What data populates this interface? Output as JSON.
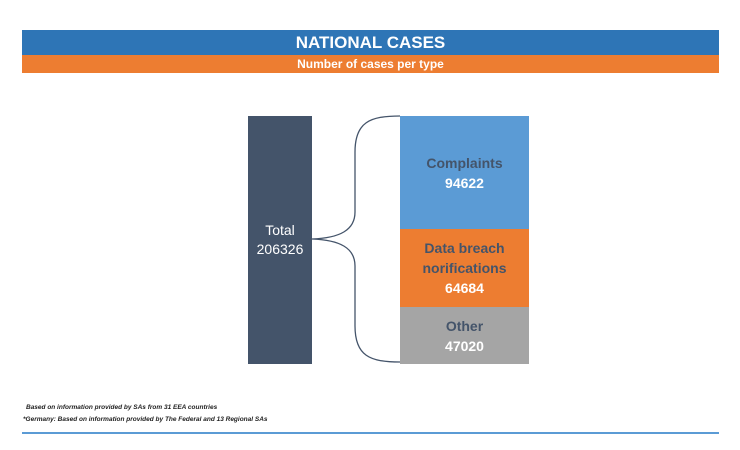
{
  "header": {
    "title": "NATIONAL CASES",
    "subtitle": "Number of cases per type"
  },
  "total": {
    "label": "Total",
    "value": "206326"
  },
  "segments": [
    {
      "label": "Complaints",
      "value": "94622"
    },
    {
      "label_line1": "Data breach",
      "label_line2": "norifications",
      "value": "64684"
    },
    {
      "label": "Other",
      "value": "47020"
    }
  ],
  "notes": [
    "Based on information provided by SAs from 31 EEA countries",
    "*Germany: Based on information provided by The Federal and 13 Regional SAs"
  ],
  "colors": {
    "blue": "#2E75B6",
    "orange": "#ED7D31",
    "dark": "#44546A",
    "lightblue": "#5B9BD5",
    "gray": "#A5A5A5"
  }
}
